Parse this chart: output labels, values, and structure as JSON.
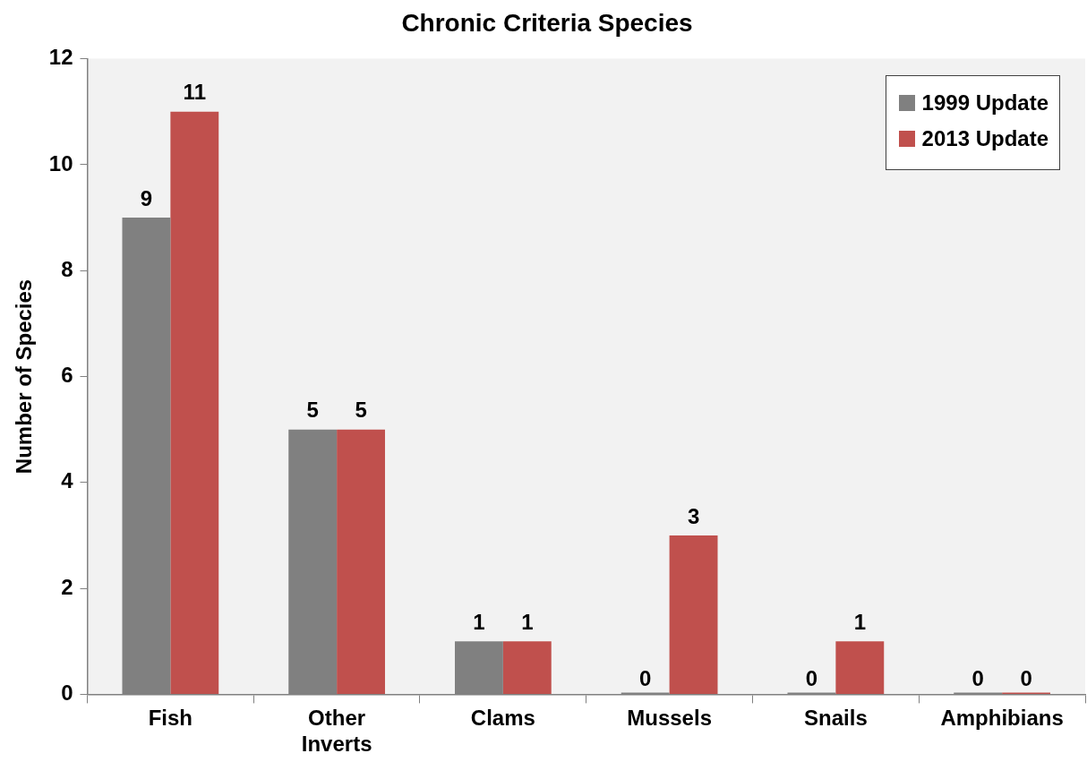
{
  "chart_data": {
    "type": "bar",
    "title": "Chronic Criteria Species",
    "ylabel": "Number of Species",
    "categories": [
      "Fish",
      "Other Inverts",
      "Clams",
      "Mussels",
      "Snails",
      "Amphibians"
    ],
    "series": [
      {
        "name": "1999 Update",
        "color": "#808080",
        "values": [
          9,
          5,
          1,
          0,
          0,
          0
        ]
      },
      {
        "name": "2013 Update",
        "color": "#c0504d",
        "values": [
          11,
          5,
          1,
          3,
          1,
          0
        ]
      }
    ],
    "ylim": [
      0,
      12
    ],
    "yticks": [
      0,
      2,
      4,
      6,
      8,
      10,
      12
    ],
    "grid": false,
    "legend": "top right",
    "data_labels": true
  }
}
